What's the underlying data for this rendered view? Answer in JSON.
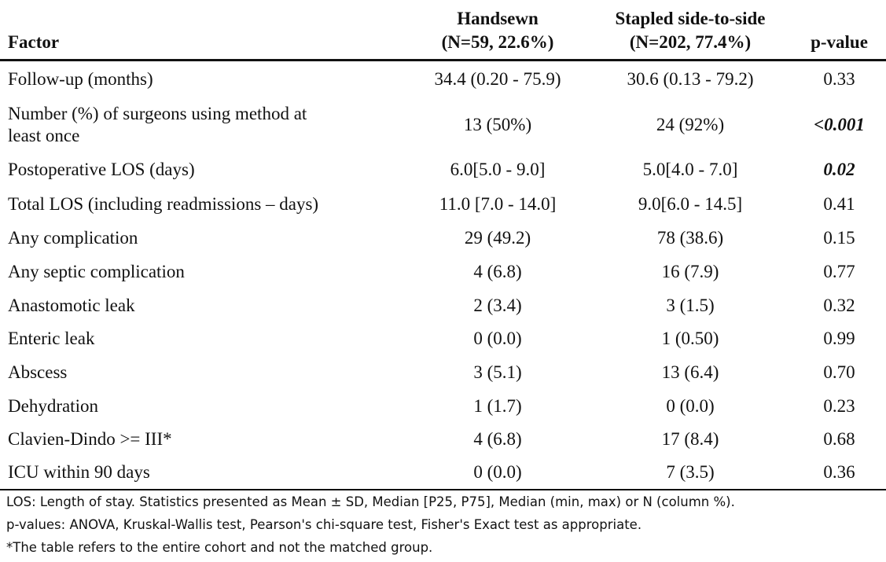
{
  "header": {
    "factor": "Factor",
    "handsewn_line1": "Handsewn",
    "handsewn_line2": "(N=59, 22.6%)",
    "stapled_line1": "Stapled side-to-side",
    "stapled_line2": "(N=202, 77.4%)",
    "pvalue": "p-value"
  },
  "rows": [
    {
      "factor": "Follow-up (months)",
      "handsewn": "34.4 (0.20 - 75.9)",
      "stapled": "30.6 (0.13 - 79.2)",
      "pvalue": "0.33"
    },
    {
      "factor_line1": "Number (%) of surgeons using method at",
      "factor_line2": "least once",
      "handsewn": "13 (50%)",
      "stapled": "24 (92%)",
      "pvalue": "<0.001"
    },
    {
      "factor": "Postoperative LOS (days)",
      "handsewn": "6.0[5.0 - 9.0]",
      "stapled": "5.0[4.0 - 7.0]",
      "pvalue": "0.02"
    },
    {
      "factor": "Total LOS (including readmissions – days)",
      "handsewn": "11.0 [7.0 - 14.0]",
      "stapled": "9.0[6.0 - 14.5]",
      "pvalue": "0.41"
    },
    {
      "factor": "Any complication",
      "handsewn": "29 (49.2)",
      "stapled": "78 (38.6)",
      "pvalue": "0.15"
    },
    {
      "factor": "Any septic complication",
      "handsewn": "4 (6.8)",
      "stapled": "16 (7.9)",
      "pvalue": "0.77"
    },
    {
      "factor": "Anastomotic leak",
      "handsewn": "2 (3.4)",
      "stapled": "3 (1.5)",
      "pvalue": "0.32"
    },
    {
      "factor": "Enteric leak",
      "handsewn": "0 (0.0)",
      "stapled": "1 (0.50)",
      "pvalue": "0.99"
    },
    {
      "factor": "Abscess",
      "handsewn": "3 (5.1)",
      "stapled": "13 (6.4)",
      "pvalue": "0.70"
    },
    {
      "factor": "Dehydration",
      "handsewn": "1 (1.7)",
      "stapled": "0 (0.0)",
      "pvalue": "0.23"
    },
    {
      "factor": "Clavien-Dindo >= III*",
      "handsewn": "4 (6.8)",
      "stapled": "17 (8.4)",
      "pvalue": "0.68"
    },
    {
      "factor": "ICU within 90 days",
      "handsewn": "0 (0.0)",
      "stapled": "7 (3.5)",
      "pvalue": "0.36"
    }
  ],
  "footnotes": {
    "line1": "LOS: Length of stay. Statistics presented as Mean ± SD, Median [P25, P75], Median (min, max) or N (column %).",
    "line2": "p-values: ANOVA, Kruskal-Wallis test, Pearson's chi-square test, Fisher's Exact test as appropriate.",
    "line3": "*The table refers to the entire cohort and not the matched group."
  }
}
